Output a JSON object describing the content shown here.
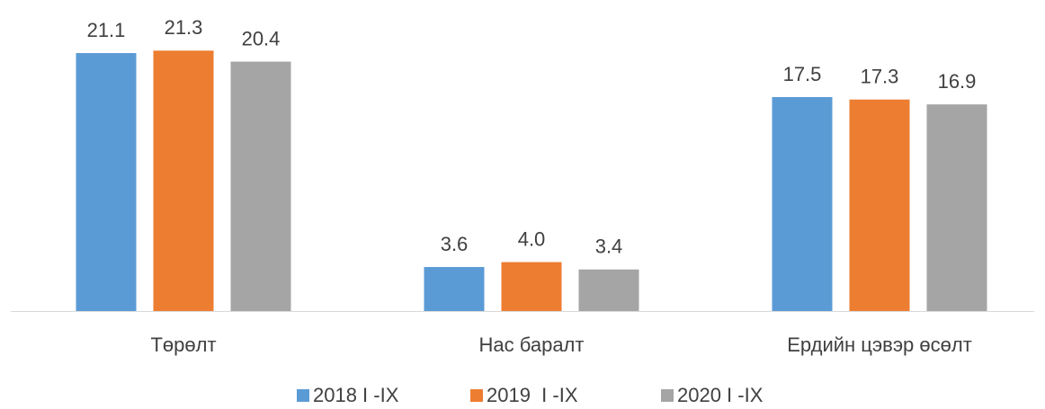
{
  "chart_data": {
    "type": "bar",
    "categories": [
      "Төрөлт",
      "Нас баралт",
      "Ердийн цэвэр өсөлт"
    ],
    "series": [
      {
        "name": "2018 I -IX",
        "color": "#5b9bd5",
        "values": [
          21.1,
          3.6,
          17.5
        ],
        "value_labels": [
          "21.1",
          "3.6",
          "17.5"
        ]
      },
      {
        "name": "2019  I -IX",
        "color": "#ed7d31",
        "values": [
          21.3,
          4.0,
          17.3
        ],
        "value_labels": [
          "21.3",
          "4.0",
          "17.3"
        ]
      },
      {
        "name": "2020 I -IX",
        "color": "#a5a5a5",
        "values": [
          20.4,
          3.4,
          16.9
        ],
        "value_labels": [
          "20.4",
          "3.4",
          "16.9"
        ]
      }
    ],
    "legend": "bottom"
  }
}
